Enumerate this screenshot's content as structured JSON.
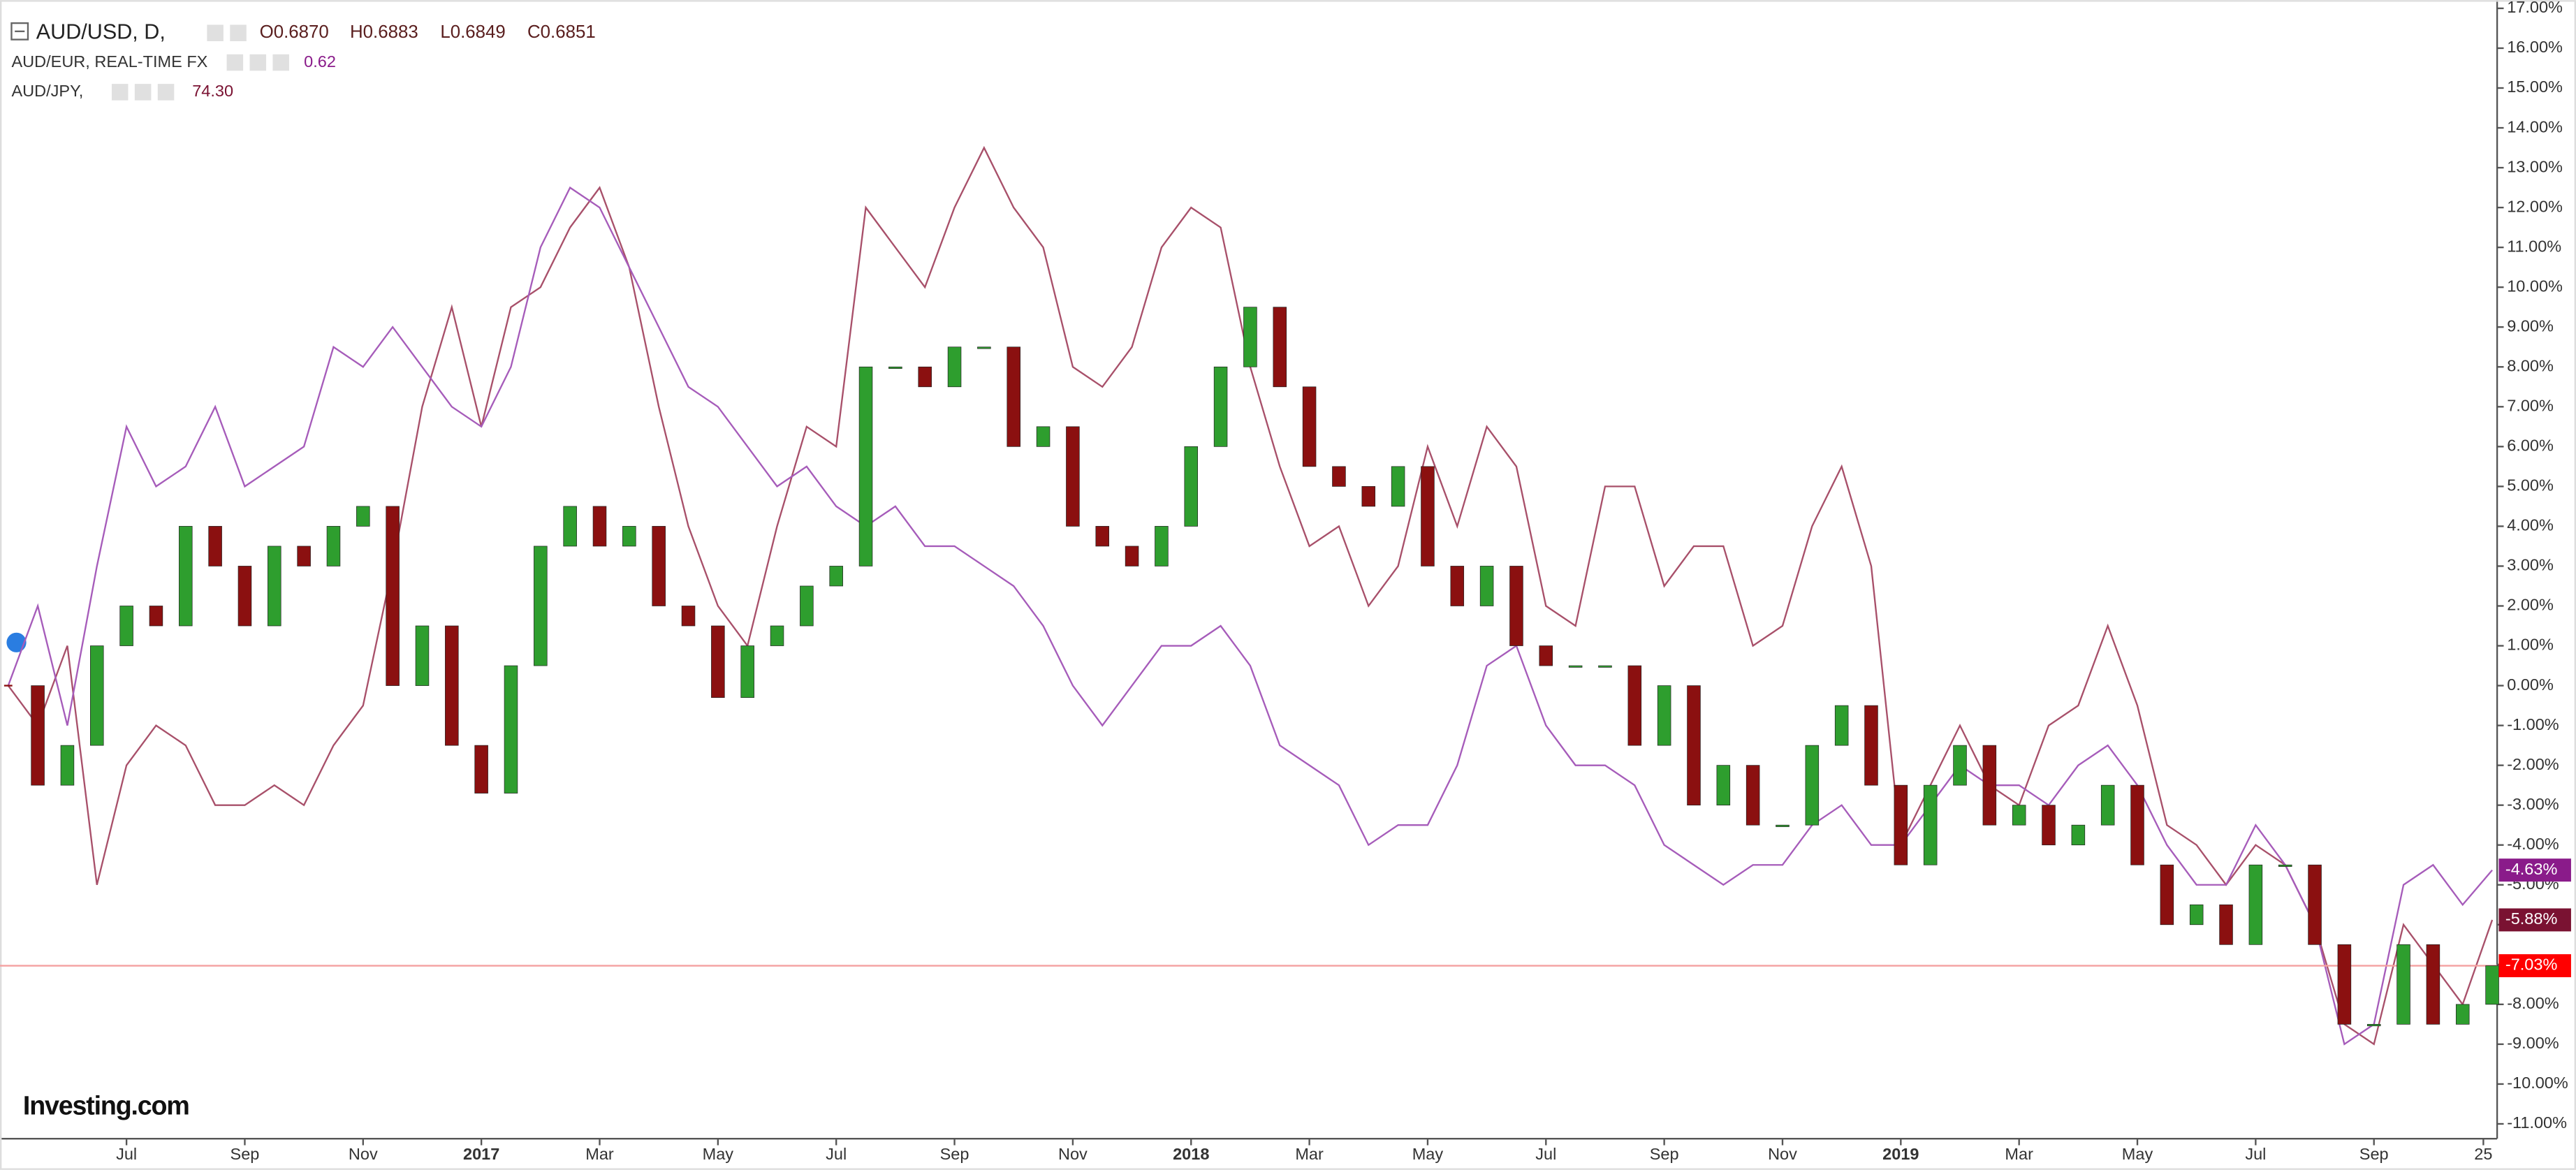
{
  "chart_data": {
    "type": "candlestick",
    "title": "AUD/USD, D,",
    "ohlc": [
      "O0.6870",
      "H0.6883",
      "L0.6849",
      "C0.6851"
    ],
    "watermark": "Investing.com",
    "x": [
      0,
      0.5,
      1,
      1.5,
      2,
      2.5,
      3,
      3.5,
      4,
      4.5,
      5,
      5.5,
      6,
      6.5,
      7,
      7.5,
      8,
      8.5,
      9,
      9.5,
      10,
      10.5,
      11,
      11.5,
      12,
      12.5,
      13,
      13.5,
      14,
      14.5,
      15,
      15.5,
      16,
      16.5,
      17,
      17.5,
      18,
      18.5,
      19,
      19.5,
      20,
      20.5,
      21,
      21.5,
      22,
      22.5,
      23,
      23.5,
      24,
      24.5,
      25,
      25.5,
      26,
      26.5,
      27,
      27.5,
      28,
      28.5,
      29,
      29.5,
      30,
      30.5,
      31,
      31.5,
      32,
      32.5,
      33,
      33.5,
      34,
      34.5,
      35,
      35.5,
      36,
      36.5,
      37,
      37.5,
      38,
      38.5,
      39,
      39.5,
      40,
      40.5,
      41,
      41.5,
      42
    ],
    "series": [
      {
        "name": "AUD/USD",
        "type": "candlestick",
        "up_color": "#2e9e2e",
        "down_color": "#8b1010",
        "color": "#ff0000",
        "last_value_label": "-7.03%",
        "values": [
          0,
          -2.5,
          -1.5,
          1,
          2,
          1.5,
          4,
          3,
          1.5,
          3.5,
          3,
          4,
          4.5,
          0,
          1.5,
          -1.5,
          -2.7,
          0.5,
          3.5,
          4.5,
          3.5,
          4,
          2,
          1.5,
          -0.3,
          1,
          1.5,
          2.5,
          3,
          8,
          8,
          7.5,
          8.5,
          8.5,
          6,
          6.5,
          4,
          3.5,
          3,
          4,
          6,
          8,
          9.5,
          7.5,
          5.5,
          5,
          4.5,
          5.5,
          3,
          2,
          3,
          1,
          0.5,
          0.5,
          0.5,
          -1.5,
          0,
          -3,
          -2,
          -3.5,
          -3.5,
          -1.5,
          -0.5,
          -2.5,
          -4.5,
          -2.5,
          -1.5,
          -3.5,
          -3,
          -4,
          -3.5,
          -2.5,
          -4.5,
          -6,
          -5.5,
          -6.5,
          -4.5,
          -4.5,
          -6.5,
          -8.5,
          -8.5,
          -6.5,
          -8.5,
          -8,
          -7.03
        ]
      },
      {
        "name": "AUD/EUR, REAL-TIME FX",
        "type": "line",
        "color": "#a65cba",
        "tag_color": "#8a1b8a",
        "price": "0.62",
        "last_value_label": "-4.63%",
        "values": [
          0,
          2,
          -1,
          3,
          6.5,
          5,
          5.5,
          7,
          5,
          5.5,
          6,
          8.5,
          8,
          9,
          8,
          7,
          6.5,
          8,
          11,
          12.5,
          12,
          10.5,
          9,
          7.5,
          7,
          6,
          5,
          5.5,
          4.5,
          4,
          4.5,
          3.5,
          3.5,
          3,
          2.5,
          1.5,
          0,
          -1,
          0,
          1,
          1,
          1.5,
          0.5,
          -1.5,
          -2,
          -2.5,
          -4,
          -3.5,
          -3.5,
          -2,
          0.5,
          1,
          -1,
          -2,
          -2,
          -2.5,
          -4,
          -4.5,
          -5,
          -4.5,
          -4.5,
          -3.5,
          -3,
          -4,
          -4,
          -3,
          -2,
          -2.5,
          -2.5,
          -3,
          -2,
          -1.5,
          -2.5,
          -4,
          -5,
          -5,
          -3.5,
          -4.5,
          -6,
          -9,
          -8.5,
          -5,
          -4.5,
          -5.5,
          -4.63
        ]
      },
      {
        "name": "AUD/JPY,",
        "type": "line",
        "color": "#a8506a",
        "tag_color": "#7a1232",
        "price": "74.30",
        "last_value_label": "-5.88%",
        "values": [
          0,
          -1,
          1,
          -5,
          -2,
          -1,
          -1.5,
          -3,
          -3,
          -2.5,
          -3,
          -1.5,
          -0.5,
          3,
          7,
          9.5,
          6.5,
          9.5,
          10,
          11.5,
          12.5,
          10.5,
          7,
          4,
          2,
          1,
          4,
          6.5,
          6,
          12,
          11,
          10,
          12,
          13.5,
          12,
          11,
          8,
          7.5,
          8.5,
          11,
          12,
          11.5,
          8,
          5.5,
          3.5,
          4,
          2,
          3,
          6,
          4,
          6.5,
          5.5,
          2,
          1.5,
          5,
          5,
          2.5,
          3.5,
          3.5,
          1,
          1.5,
          4,
          5.5,
          3,
          -4,
          -2.5,
          -1,
          -2.5,
          -3,
          -1,
          -0.5,
          1.5,
          -0.5,
          -3.5,
          -4,
          -5,
          -4,
          -4.5,
          -6,
          -8.5,
          -9,
          -6,
          -7,
          -8,
          -5.88
        ]
      }
    ],
    "xlim": [
      0,
      42.083
    ],
    "xticks": [
      {
        "value": 2,
        "label": "Jul"
      },
      {
        "value": 4,
        "label": "Sep"
      },
      {
        "value": 6,
        "label": "Nov"
      },
      {
        "value": 8,
        "label": "2017"
      },
      {
        "value": 10,
        "label": "Mar"
      },
      {
        "value": 12,
        "label": "May"
      },
      {
        "value": 14,
        "label": "Jul"
      },
      {
        "value": 16,
        "label": "Sep"
      },
      {
        "value": 18,
        "label": "Nov"
      },
      {
        "value": 20,
        "label": "2018"
      },
      {
        "value": 22,
        "label": "Mar"
      },
      {
        "value": 24,
        "label": "May"
      },
      {
        "value": 26,
        "label": "Jul"
      },
      {
        "value": 28,
        "label": "Sep"
      },
      {
        "value": 30,
        "label": "Nov"
      },
      {
        "value": 32,
        "label": "2019"
      },
      {
        "value": 34,
        "label": "Mar"
      },
      {
        "value": 36,
        "label": "May"
      },
      {
        "value": 38,
        "label": "Jul"
      },
      {
        "value": 40,
        "label": "Sep"
      },
      {
        "value": 41.85,
        "label": "25"
      }
    ],
    "ylim": [
      -11,
      17
    ],
    "yticks": [
      {
        "value": -11,
        "label": "-11.00%"
      },
      {
        "value": -10,
        "label": "-10.00%"
      },
      {
        "value": -9,
        "label": "-9.00%"
      },
      {
        "value": -8,
        "label": "-8.00%"
      },
      {
        "value": -7,
        "label": "-7.00%"
      },
      {
        "value": -6,
        "label": "-6.00%"
      },
      {
        "value": -5,
        "label": "-5.00%"
      },
      {
        "value": -4,
        "label": "-4.00%"
      },
      {
        "value": -3,
        "label": "-3.00%"
      },
      {
        "value": -2,
        "label": "-2.00%"
      },
      {
        "value": -1,
        "label": "-1.00%"
      },
      {
        "value": 0,
        "label": "0.00%"
      },
      {
        "value": 1,
        "label": "1.00%"
      },
      {
        "value": 2,
        "label": "2.00%"
      },
      {
        "value": 3,
        "label": "3.00%"
      },
      {
        "value": 4,
        "label": "4.00%"
      },
      {
        "value": 5,
        "label": "5.00%"
      },
      {
        "value": 6,
        "label": "6.00%"
      },
      {
        "value": 7,
        "label": "7.00%"
      },
      {
        "value": 8,
        "label": "8.00%"
      },
      {
        "value": 9,
        "label": "9.00%"
      },
      {
        "value": 10,
        "label": "10.00%"
      },
      {
        "value": 11,
        "label": "11.00%"
      },
      {
        "value": 12,
        "label": "12.00%"
      },
      {
        "value": 13,
        "label": "13.00%"
      },
      {
        "value": 14,
        "label": "14.00%"
      },
      {
        "value": 15,
        "label": "15.00%"
      },
      {
        "value": 16,
        "label": "16.00%"
      },
      {
        "value": 17,
        "label": "17.00%"
      }
    ],
    "grid": false
  }
}
